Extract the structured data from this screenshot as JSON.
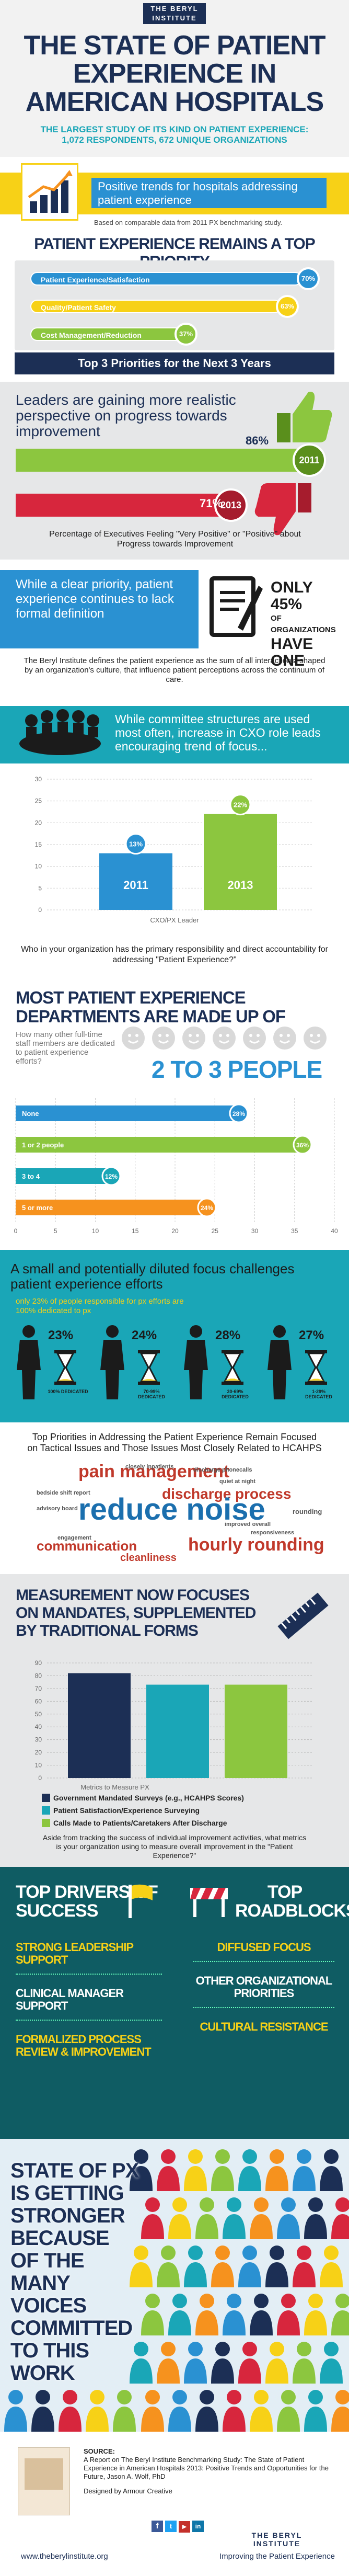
{
  "colors": {
    "navy": "#1c2f55",
    "teal": "#1aa6b7",
    "blue": "#2a91d2",
    "green": "#8cc63f",
    "orange": "#f6921e",
    "red": "#d7263d",
    "yellow": "#f7d117",
    "dark": "#1b1b1b"
  },
  "header": {
    "institute_line1": "THE BERYL",
    "institute_line2": "INSTITUTE",
    "title": "THE STATE OF PATIENT EXPERIENCE IN AMERICAN HOSPITALS",
    "subtitle": "THE LARGEST STUDY OF ITS KIND ON PATIENT EXPERIENCE: 1,072 RESPONDENTS, 672 UNIQUE ORGANIZATIONS"
  },
  "trends": {
    "text": "Positive trends for hospitals addressing patient experience",
    "note": "Based on comparable data from 2011 PX benchmarking study."
  },
  "priority": {
    "title": "PATIENT EXPERIENCE REMAINS A TOP PRIORITY",
    "items": [
      {
        "label": "Patient Experience/Satisfaction",
        "value": "70%"
      },
      {
        "label": "Quality/Patient Safety",
        "value": "63%"
      },
      {
        "label": "Cost Management/Reduction",
        "value": "37%"
      }
    ],
    "footer": "Top 3 Priorities for the Next 3 Years"
  },
  "leaders": {
    "title": "Leaders are gaining more realistic perspective on progress towards improvement",
    "up_pct": "86%",
    "up_year": "2011",
    "down_pct": "71%",
    "down_year": "2013",
    "caption": "Percentage of Executives Feeling \"Very Positive\" or \"Positive\" about Progress towards Improvement"
  },
  "definition": {
    "left": "While a clear priority, patient experience continues to lack formal definition",
    "only": "ONLY 45%",
    "of_orgs": "OF ORGANIZATIONS",
    "have_one": "HAVE ONE",
    "body": "The Beryl Institute defines the patient experience as the sum of all interactions, shaped by an organization's culture, that influence patient perceptions across the continuum of care."
  },
  "committee": {
    "text": "While committee structures are used most often, increase in CXO role leads encouraging trend of focus...",
    "xlabel": "CXO/PX Leader",
    "caption": "Who in your organization has the primary responsibility and direct accountability for addressing \"Patient Experience?\""
  },
  "chart1": {
    "type": "bar",
    "categories": [
      "2011",
      "2013"
    ],
    "values": [
      13,
      22
    ],
    "value_labels": [
      "13%",
      "22%"
    ],
    "yticks": [
      "0",
      "5",
      "10",
      "15",
      "20",
      "25",
      "30"
    ],
    "ylim": [
      0,
      30
    ],
    "xlabel": "CXO/PX Leader"
  },
  "departments": {
    "title": "MOST PATIENT EXPERIENCE DEPARTMENTS ARE MADE UP OF",
    "question": "How many other full-time staff members are dedicated to patient experience efforts?",
    "answer": "2 TO 3 PEOPLE",
    "xticks": [
      "0",
      "5",
      "10",
      "15",
      "20",
      "25",
      "30",
      "35",
      "40"
    ]
  },
  "chart2": {
    "type": "bar",
    "categories": [
      "None",
      "1 or 2 people",
      "3 to 4",
      "5 or more"
    ],
    "values": [
      28,
      36,
      12,
      24
    ],
    "value_labels": [
      "28%",
      "36%",
      "12%",
      "24%"
    ],
    "xlim": [
      0,
      40
    ]
  },
  "diluted": {
    "title": "A small and potentially diluted focus challenges patient experience efforts",
    "sub": "only 23% of people responsible for px efforts are 100% dedicated to px",
    "stats": [
      {
        "value": "23%",
        "label": "100% DEDICATED"
      },
      {
        "value": "24%",
        "label": "70-99% DEDICATED"
      },
      {
        "value": "28%",
        "label": "30-69% DEDICATED"
      },
      {
        "value": "27%",
        "label": "1-29% DEDICATED"
      }
    ],
    "priorities_title": "Top Priorities in Addressing the Patient Experience Remain Focused on Tactical Issues and Those Issues Most Closely Related to HCAHPS"
  },
  "wordcloud": [
    {
      "t": "pain management",
      "c": "#c0392b"
    },
    {
      "t": "discharge process",
      "c": "#c0392b"
    },
    {
      "t": "reduce noise",
      "c": "#1b6fae"
    },
    {
      "t": "hourly rounding",
      "c": "#c0392b"
    },
    {
      "t": "communication",
      "c": "#c0392b"
    },
    {
      "t": "cleanliness",
      "c": "#c0392b"
    },
    {
      "t": "closely inpatients",
      "c": "#555"
    },
    {
      "t": "discharge phonecalls",
      "c": "#555"
    },
    {
      "t": "quiet at night",
      "c": "#555"
    },
    {
      "t": "bedside shift report",
      "c": "#555"
    },
    {
      "t": "rounding",
      "c": "#555"
    },
    {
      "t": "advisory board",
      "c": "#555"
    },
    {
      "t": "improved overall",
      "c": "#555"
    },
    {
      "t": "responsiveness",
      "c": "#555"
    },
    {
      "t": "engagement",
      "c": "#555"
    }
  ],
  "measurement": {
    "title": "MEASUREMENT NOW FOCUSES ON MANDATES, SUPPLEMENTED BY TRADITIONAL FORMS",
    "xlabel": "Metrics to Measure PX",
    "yticks": [
      "0",
      "10",
      "20",
      "30",
      "40",
      "50",
      "60",
      "70",
      "80",
      "90"
    ],
    "legend": [
      "Government Mandated Surveys (e.g., HCAHPS Scores)",
      "Patient Satisfaction/Experience Surveying",
      "Calls Made to Patients/Caretakers After Discharge"
    ],
    "caption": "Aside from tracking the success of individual improvement activities, what metrics is your organization using to measure overall improvement in the \"Patient Experience?\""
  },
  "chart3": {
    "type": "bar",
    "categories": [
      "Government Mandated Surveys (e.g., HCAHPS Scores)",
      "Patient Satisfaction/Experience Surveying",
      "Calls Made to Patients/Caretakers After Discharge"
    ],
    "values": [
      82,
      73,
      73
    ],
    "ylim": [
      0,
      90
    ],
    "series_colors": [
      "#1c2f55",
      "#1aa6b7",
      "#8cc63f"
    ]
  },
  "drivers": {
    "title": "TOP DRIVERS OF SUCCESS",
    "items": [
      "STRONG LEADERSHIP SUPPORT",
      "CLINICAL MANAGER SUPPORT",
      "FORMALIZED PROCESS REVIEW & IMPROVEMENT"
    ]
  },
  "roadblocks": {
    "title": "TOP ROADBLOCKS",
    "items": [
      "DIFFUSED FOCUS",
      "OTHER ORGANIZATIONAL PRIORITIES",
      "CULTURAL RESISTANCE"
    ]
  },
  "state": {
    "text": "STATE OF PX IS GETTING STRONGER BECAUSE OF THE MANY VOICES COMMITTED TO THIS WORK"
  },
  "footer": {
    "source_label": "SOURCE:",
    "source": "A Report on The Beryl Institute Benchmarking Study: The State of Patient Experience in American Hospitals 2013: Positive Trends and Opportunities for the Future, Jason A. Wolf, PhD",
    "designed": "Designed by Armour Creative",
    "url": "www.theberylinstitute.org",
    "tagline": "Improving the Patient Experience",
    "logo1": "THE BERYL",
    "logo2": "INSTITUTE"
  }
}
